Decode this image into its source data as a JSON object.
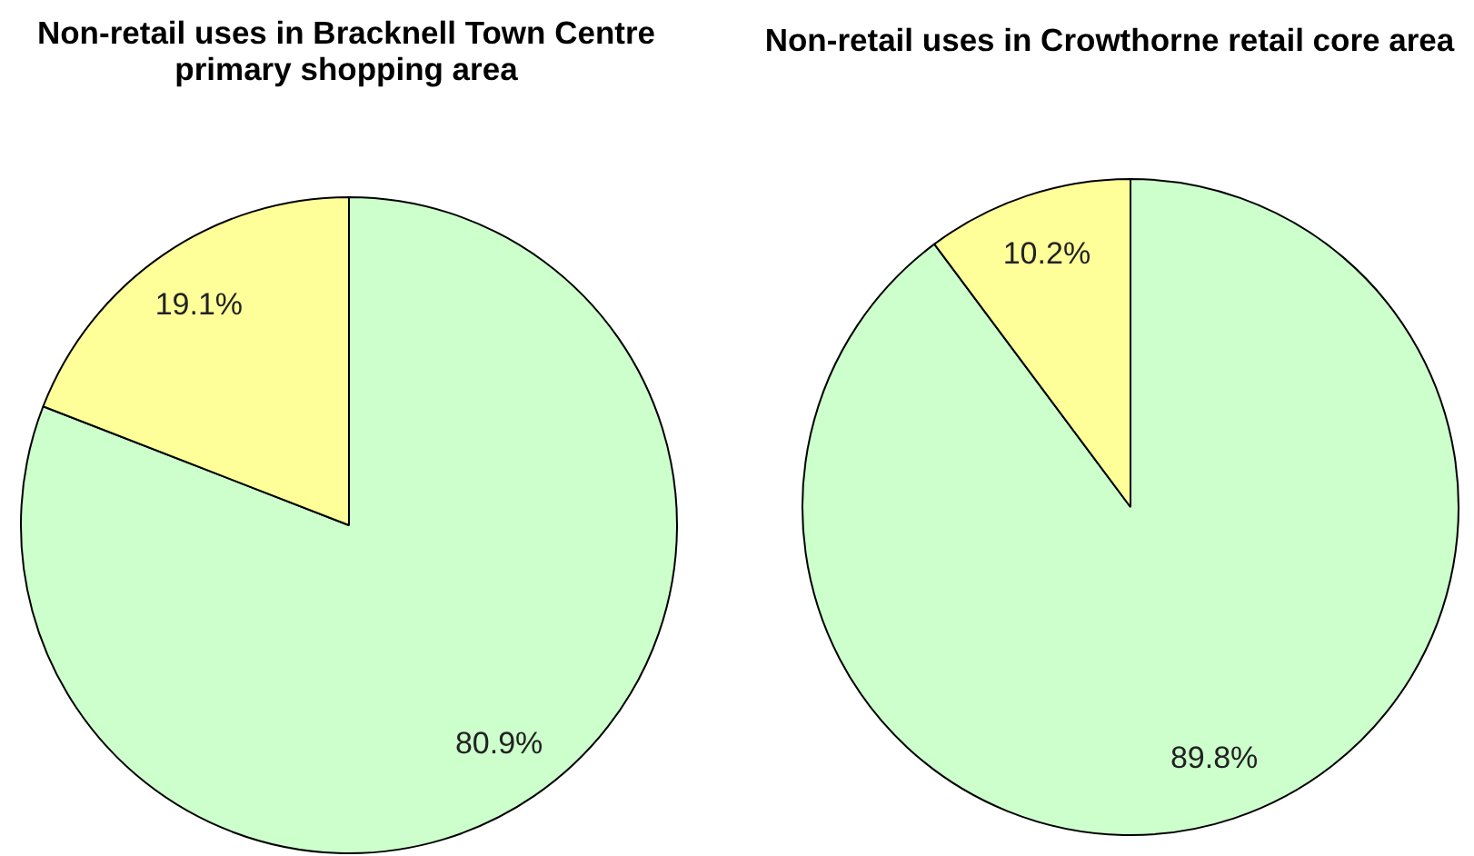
{
  "chart_data": [
    {
      "type": "pie",
      "title": "Non-retail uses in Bracknell Town Centre primary shopping area",
      "categories": [
        null,
        null
      ],
      "values": [
        80.9,
        19.1
      ],
      "colors": [
        "#ccffcc",
        "#ffff99"
      ],
      "value_labels": [
        "80.9%",
        "19.1%"
      ]
    },
    {
      "type": "pie",
      "title": "Non-retail uses in Crowthorne retail core area",
      "categories": [
        null,
        null
      ],
      "values": [
        89.8,
        10.2
      ],
      "colors": [
        "#ccffcc",
        "#ffff99"
      ],
      "value_labels": [
        "89.8%",
        "10.2%"
      ]
    }
  ]
}
